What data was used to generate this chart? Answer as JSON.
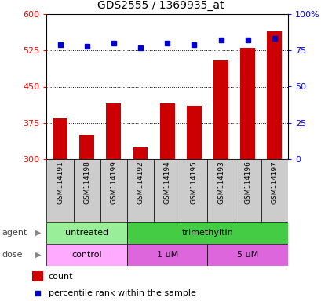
{
  "title": "GDS2555 / 1369935_at",
  "samples": [
    "GSM114191",
    "GSM114198",
    "GSM114199",
    "GSM114192",
    "GSM114194",
    "GSM114195",
    "GSM114193",
    "GSM114196",
    "GSM114197"
  ],
  "counts": [
    385,
    350,
    415,
    325,
    415,
    410,
    505,
    530,
    565
  ],
  "percentiles": [
    79,
    78,
    80,
    77,
    80,
    79,
    82,
    82,
    83
  ],
  "ylim_left": [
    300,
    600
  ],
  "ylim_right": [
    0,
    100
  ],
  "yticks_left": [
    300,
    375,
    450,
    525,
    600
  ],
  "yticks_right": [
    0,
    25,
    50,
    75,
    100
  ],
  "bar_color": "#cc0000",
  "dot_color": "#0000cc",
  "agent_groups": [
    {
      "label": "untreated",
      "start": 0,
      "end": 3,
      "color": "#99ee99"
    },
    {
      "label": "trimethyltin",
      "start": 3,
      "end": 9,
      "color": "#44cc44"
    }
  ],
  "dose_groups": [
    {
      "label": "control",
      "start": 0,
      "end": 3,
      "color": "#ffaaff"
    },
    {
      "label": "1 uM",
      "start": 3,
      "end": 6,
      "color": "#dd66dd"
    },
    {
      "label": "5 uM",
      "start": 6,
      "end": 9,
      "color": "#dd66dd"
    }
  ],
  "legend_count_label": "count",
  "legend_pct_label": "percentile rank within the sample",
  "agent_label": "agent",
  "dose_label": "dose",
  "sample_bg": "#cccccc"
}
